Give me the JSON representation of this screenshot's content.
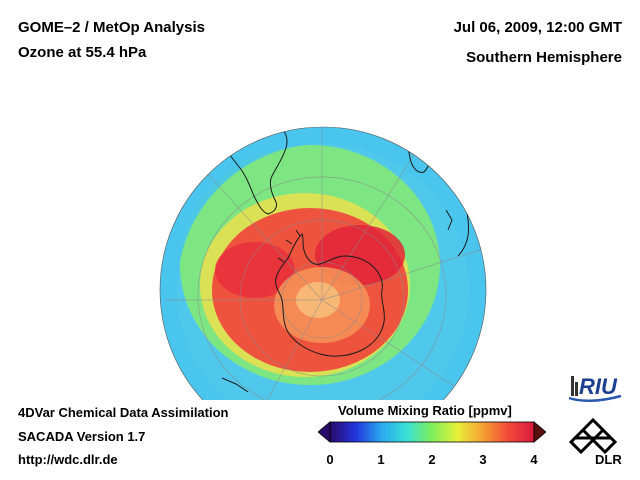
{
  "header": {
    "title_line1": "GOME–2 / MetOp Analysis",
    "title_line2": "Ozone at 55.4 hPa",
    "date": "Jul 06, 2009, 12:00 GMT",
    "region": "Southern Hemisphere"
  },
  "footer": {
    "line1": "4DVar Chemical Data Assimilation",
    "line2": "SACADA Version 1.7",
    "url": "http://wdc.dlr.de"
  },
  "colorbar": {
    "title": "Volume Mixing Ratio [ppmv]",
    "min": 0,
    "max": 4,
    "ticks": [
      "0",
      "1",
      "2",
      "3",
      "4"
    ],
    "colors": [
      "#2a0a6b",
      "#2233dd",
      "#2aa8f0",
      "#39e0d8",
      "#7fef5a",
      "#e8f03a",
      "#f6a032",
      "#f24a3a",
      "#d81a3c"
    ]
  },
  "map": {
    "field_colors": {
      "low": "#4fc8ec",
      "mid_low": "#48e6c8",
      "mid": "#8af05a",
      "high_mid": "#f2d84a",
      "high": "#f56040",
      "peak": "#e42a3a"
    },
    "coastline_color": "#1a1a1a",
    "grid_color": "#8a8a8a"
  },
  "logos": {
    "riu": "RIU",
    "dlr": "DLR"
  }
}
